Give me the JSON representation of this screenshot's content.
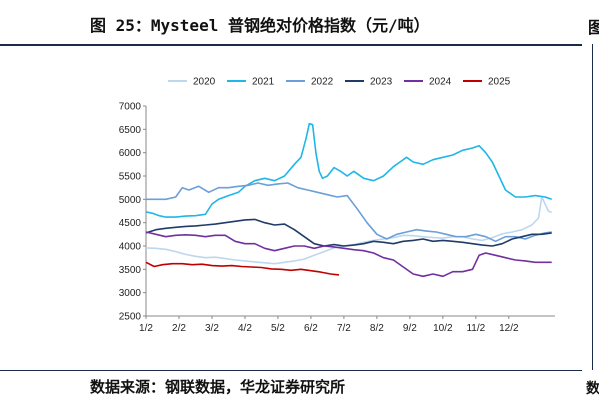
{
  "header": {
    "title": "图 25：Mysteel 普钢绝对价格指数（元/吨）",
    "edge_glyph": "图"
  },
  "footer": {
    "source": "数据来源：钢联数据，华龙证券研究所",
    "edge_glyph": "数"
  },
  "chart_data": {
    "type": "line",
    "title": "图 25：Mysteel 普钢绝对价格指数（元/吨）",
    "xlabel": "",
    "ylabel": "",
    "ylim": [
      2500,
      7000
    ],
    "yticks": [
      2500,
      3000,
      3500,
      4000,
      4500,
      5000,
      5500,
      6000,
      6500,
      7000
    ],
    "xticks": [
      "1/2",
      "2/2",
      "3/2",
      "4/2",
      "5/2",
      "6/2",
      "7/2",
      "8/2",
      "9/2",
      "10/2",
      "11/2",
      "12/2"
    ],
    "xlim": [
      0,
      12.4
    ],
    "grid": false,
    "legend": "top",
    "series": [
      {
        "name": "2020",
        "color": "#bdd7ee",
        "x": [
          0,
          0.3,
          0.6,
          0.9,
          1.2,
          1.5,
          1.8,
          2.1,
          2.4,
          2.7,
          3.0,
          3.3,
          3.6,
          3.9,
          4.2,
          4.5,
          4.8,
          5.1,
          5.4,
          5.7,
          6.0,
          6.3,
          6.6,
          6.9,
          7.2,
          7.5,
          7.8,
          8.1,
          8.4,
          8.7,
          9.0,
          9.3,
          9.6,
          9.9,
          10.2,
          10.5,
          10.8,
          11.1,
          11.4,
          11.7,
          11.9,
          12.0,
          12.1,
          12.2,
          12.3
        ],
        "y": [
          3960,
          3950,
          3930,
          3880,
          3820,
          3780,
          3750,
          3760,
          3730,
          3700,
          3680,
          3660,
          3640,
          3620,
          3650,
          3680,
          3720,
          3800,
          3880,
          3960,
          4000,
          4030,
          4080,
          4120,
          4150,
          4180,
          4230,
          4220,
          4200,
          4180,
          4170,
          4200,
          4200,
          4150,
          4120,
          4180,
          4260,
          4300,
          4350,
          4450,
          4600,
          5050,
          4900,
          4750,
          4720
        ]
      },
      {
        "name": "2021",
        "color": "#1fb6e8",
        "x": [
          0,
          0.2,
          0.4,
          0.6,
          0.9,
          1.2,
          1.5,
          1.8,
          2.0,
          2.2,
          2.5,
          2.8,
          3.0,
          3.3,
          3.6,
          3.9,
          4.2,
          4.5,
          4.7,
          4.85,
          4.95,
          5.05,
          5.15,
          5.25,
          5.35,
          5.5,
          5.7,
          5.9,
          6.1,
          6.3,
          6.6,
          6.9,
          7.2,
          7.5,
          7.7,
          7.9,
          8.1,
          8.4,
          8.7,
          9.0,
          9.3,
          9.6,
          9.9,
          10.1,
          10.3,
          10.5,
          10.7,
          10.9,
          11.2,
          11.5,
          11.8,
          12.1,
          12.3
        ],
        "y": [
          4730,
          4700,
          4650,
          4620,
          4620,
          4640,
          4650,
          4680,
          4900,
          5000,
          5080,
          5150,
          5280,
          5400,
          5450,
          5400,
          5500,
          5750,
          5900,
          6300,
          6620,
          6600,
          6000,
          5600,
          5450,
          5500,
          5680,
          5600,
          5500,
          5600,
          5450,
          5400,
          5500,
          5700,
          5800,
          5900,
          5800,
          5750,
          5850,
          5900,
          5950,
          6050,
          6100,
          6150,
          6000,
          5800,
          5500,
          5200,
          5050,
          5050,
          5080,
          5050,
          5000
        ]
      },
      {
        "name": "2022",
        "color": "#6a9fd8",
        "x": [
          0,
          0.3,
          0.6,
          0.9,
          1.1,
          1.3,
          1.6,
          1.9,
          2.2,
          2.5,
          2.8,
          3.1,
          3.4,
          3.7,
          4.0,
          4.3,
          4.6,
          4.9,
          5.2,
          5.5,
          5.8,
          6.1,
          6.4,
          6.7,
          7.0,
          7.3,
          7.6,
          7.9,
          8.2,
          8.5,
          8.8,
          9.1,
          9.4,
          9.7,
          10.0,
          10.3,
          10.6,
          10.9,
          11.2,
          11.5,
          11.8,
          12.1,
          12.3
        ],
        "y": [
          5000,
          5000,
          5000,
          5050,
          5250,
          5200,
          5280,
          5150,
          5250,
          5250,
          5280,
          5300,
          5350,
          5300,
          5330,
          5350,
          5250,
          5200,
          5150,
          5100,
          5050,
          5080,
          4800,
          4500,
          4250,
          4150,
          4250,
          4300,
          4350,
          4320,
          4300,
          4250,
          4200,
          4200,
          4250,
          4200,
          4100,
          4200,
          4200,
          4150,
          4230,
          4280,
          4300
        ]
      },
      {
        "name": "2023",
        "color": "#1f3b66",
        "x": [
          0,
          0.3,
          0.6,
          0.9,
          1.2,
          1.5,
          1.8,
          2.1,
          2.4,
          2.7,
          3.0,
          3.3,
          3.6,
          3.9,
          4.2,
          4.5,
          4.8,
          5.1,
          5.4,
          5.7,
          6.0,
          6.3,
          6.6,
          6.9,
          7.2,
          7.5,
          7.8,
          8.1,
          8.4,
          8.7,
          9.0,
          9.3,
          9.6,
          9.9,
          10.2,
          10.5,
          10.8,
          11.1,
          11.4,
          11.7,
          12.0,
          12.3
        ],
        "y": [
          4280,
          4350,
          4380,
          4400,
          4420,
          4430,
          4450,
          4470,
          4500,
          4530,
          4560,
          4570,
          4500,
          4450,
          4470,
          4350,
          4200,
          4050,
          4000,
          4030,
          4000,
          4020,
          4050,
          4100,
          4080,
          4050,
          4100,
          4120,
          4150,
          4100,
          4120,
          4100,
          4080,
          4050,
          4020,
          4000,
          4050,
          4150,
          4200,
          4250,
          4250,
          4280
        ]
      },
      {
        "name": "2024",
        "color": "#7030a0",
        "x": [
          0,
          0.3,
          0.6,
          0.9,
          1.2,
          1.5,
          1.8,
          2.1,
          2.4,
          2.7,
          3.0,
          3.3,
          3.6,
          3.9,
          4.2,
          4.5,
          4.8,
          5.1,
          5.4,
          5.7,
          6.0,
          6.3,
          6.6,
          6.9,
          7.2,
          7.5,
          7.8,
          8.1,
          8.4,
          8.7,
          9.0,
          9.3,
          9.6,
          9.9,
          10.1,
          10.3,
          10.6,
          10.9,
          11.2,
          11.5,
          11.8,
          12.1,
          12.3
        ],
        "y": [
          4300,
          4250,
          4200,
          4230,
          4240,
          4230,
          4200,
          4230,
          4230,
          4100,
          4050,
          4050,
          3950,
          3900,
          3950,
          4000,
          4000,
          3950,
          4000,
          3980,
          3950,
          3920,
          3900,
          3850,
          3750,
          3700,
          3550,
          3400,
          3350,
          3400,
          3350,
          3450,
          3450,
          3500,
          3800,
          3850,
          3800,
          3750,
          3700,
          3680,
          3650,
          3650,
          3650
        ]
      },
      {
        "name": "2025",
        "color": "#c00000",
        "x": [
          0,
          0.25,
          0.5,
          0.8,
          1.1,
          1.4,
          1.7,
          2.0,
          2.3,
          2.6,
          2.9,
          3.2,
          3.5,
          3.8,
          4.1,
          4.4,
          4.7,
          5.0,
          5.3,
          5.6,
          5.85
        ],
        "y": [
          3650,
          3560,
          3600,
          3620,
          3620,
          3600,
          3610,
          3580,
          3570,
          3580,
          3560,
          3550,
          3540,
          3510,
          3500,
          3480,
          3500,
          3470,
          3440,
          3400,
          3380
        ]
      }
    ]
  }
}
